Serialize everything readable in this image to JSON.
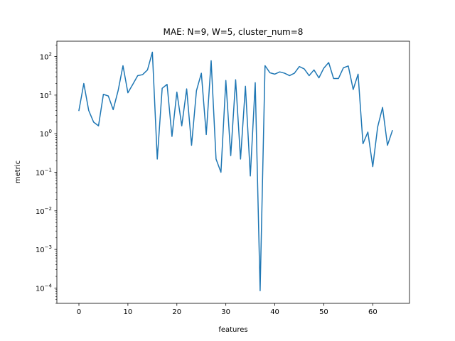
{
  "chart_data": {
    "type": "line",
    "title": "MAE: N=9, W=5, cluster_num=8",
    "xlabel": "features",
    "ylabel": "metric",
    "yscale": "log",
    "xlim": [
      -4.5,
      67.5
    ],
    "ylim": [
      4e-05,
      250
    ],
    "x_ticks": [
      0,
      10,
      20,
      30,
      40,
      50,
      60
    ],
    "y_ticks": [
      {
        "value": 0.0001,
        "base": "10",
        "exp": "−4"
      },
      {
        "value": 0.001,
        "base": "10",
        "exp": "−3"
      },
      {
        "value": 0.01,
        "base": "10",
        "exp": "−2"
      },
      {
        "value": 0.1,
        "base": "10",
        "exp": "−1"
      },
      {
        "value": 1,
        "base": "10",
        "exp": "0"
      },
      {
        "value": 10,
        "base": "10",
        "exp": "1"
      },
      {
        "value": 100,
        "base": "10",
        "exp": "2"
      }
    ],
    "line_color": "#1f77b4",
    "series": [
      {
        "name": "metric",
        "x": [
          0,
          1,
          2,
          3,
          4,
          5,
          6,
          7,
          8,
          9,
          10,
          11,
          12,
          13,
          14,
          15,
          16,
          17,
          18,
          19,
          20,
          21,
          22,
          23,
          24,
          25,
          26,
          27,
          28,
          29,
          30,
          31,
          32,
          33,
          34,
          35,
          36,
          37,
          38,
          39,
          40,
          41,
          42,
          43,
          44,
          45,
          46,
          47,
          48,
          49,
          50,
          51,
          52,
          53,
          54,
          55,
          56,
          57,
          58,
          59,
          60,
          61,
          62,
          63,
          64
        ],
        "values": [
          4,
          20,
          4,
          2,
          1.6,
          10.5,
          9.5,
          4.2,
          13,
          58,
          11.5,
          19,
          32,
          34,
          45,
          130,
          0.22,
          15,
          19,
          0.85,
          12,
          1.6,
          14.5,
          0.5,
          13,
          37,
          0.95,
          78,
          0.22,
          0.1,
          24,
          0.27,
          25,
          0.22,
          17,
          0.08,
          21,
          8.5e-05,
          58,
          38,
          35,
          40,
          37,
          32,
          37,
          55,
          48,
          32,
          45,
          28,
          50,
          70,
          27,
          27,
          51,
          57,
          14,
          35,
          0.55,
          1.1,
          0.14,
          1.5,
          4.8,
          0.5,
          1.2
        ]
      }
    ]
  }
}
